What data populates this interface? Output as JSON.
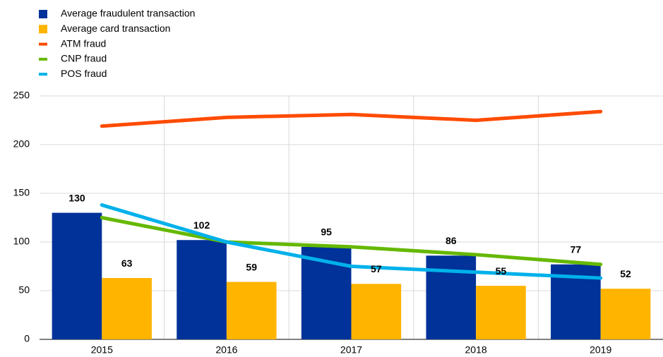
{
  "chart_data": {
    "type": "bar",
    "categories": [
      "2015",
      "2016",
      "2017",
      "2018",
      "2019"
    ],
    "series": [
      {
        "name": "Average fraudulent transaction",
        "type": "bar",
        "color": "#003299",
        "values": [
          130,
          102,
          95,
          86,
          77
        ]
      },
      {
        "name": "Average card transaction",
        "type": "bar",
        "color": "#ffb400",
        "values": [
          63,
          59,
          57,
          55,
          52
        ]
      },
      {
        "name": "ATM fraud",
        "type": "line",
        "color": "#ff4b00",
        "values": [
          219,
          228,
          231,
          225,
          234
        ]
      },
      {
        "name": "CNP fraud",
        "type": "line",
        "color": "#65b800",
        "values": [
          125,
          100,
          95,
          87,
          77
        ]
      },
      {
        "name": "POS fraud",
        "type": "line",
        "color": "#00b1ea",
        "values": [
          138,
          100,
          75,
          69,
          63
        ]
      }
    ],
    "ylim": [
      0,
      250
    ],
    "yticks": [
      0,
      50,
      100,
      150,
      200,
      250
    ],
    "grid": true,
    "legend": "top-left"
  }
}
